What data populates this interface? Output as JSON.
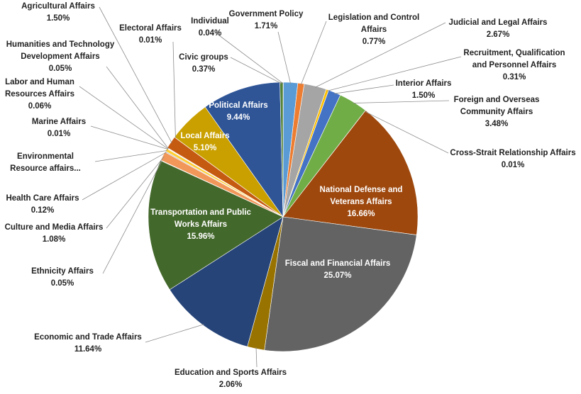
{
  "chart_data": {
    "type": "pie",
    "title": "",
    "start_angle_deg": 0,
    "direction": "clockwise",
    "slices": [
      {
        "label": "Individual",
        "value": 0.04,
        "value_label": "0.04%",
        "color": "#4472c4"
      },
      {
        "label": "Government Policy",
        "value": 1.71,
        "value_label": "1.71%",
        "color": "#5b9bd5"
      },
      {
        "label": "Legislation and Control Affairs",
        "value": 0.77,
        "value_label": "0.77%",
        "color": "#ed7d31"
      },
      {
        "label": "Judicial and Legal Affairs",
        "value": 2.67,
        "value_label": "2.67%",
        "color": "#a5a5a5"
      },
      {
        "label": "Recruitment, Qualification and Personnel Affairs",
        "value": 0.31,
        "value_label": "0.31%",
        "color": "#ffc000"
      },
      {
        "label": "Interior Affairs",
        "value": 1.5,
        "value_label": "1.50%",
        "color": "#4472c4"
      },
      {
        "label": "Foreign and Overseas Community Affairs",
        "value": 3.48,
        "value_label": "3.48%",
        "color": "#70ad47"
      },
      {
        "label": "Cross-Strait Relationship Affairs",
        "value": 0.01,
        "value_label": "0.01%",
        "color": "#264478"
      },
      {
        "label": "National Defense and Veterans Affairs",
        "value": 16.66,
        "value_label": "16.66%",
        "color": "#9e480e"
      },
      {
        "label": "Fiscal and Financial Affairs",
        "value": 25.07,
        "value_label": "25.07%",
        "color": "#636363"
      },
      {
        "label": "Education and Sports Affairs",
        "value": 2.06,
        "value_label": "2.06%",
        "color": "#997300"
      },
      {
        "label": "Economic and Trade Affairs",
        "value": 11.64,
        "value_label": "11.64%",
        "color": "#264478"
      },
      {
        "label": "Transportation and Public Works Affairs",
        "value": 15.96,
        "value_label": "15.96%",
        "color": "#43682b"
      },
      {
        "label": "Ethnicity Affairs",
        "value": 0.05,
        "value_label": "0.05%",
        "color": "#698ed0"
      },
      {
        "label": "Culture and Media Affairs",
        "value": 1.08,
        "value_label": "1.08%",
        "color": "#f1975a"
      },
      {
        "label": "Health Care Affairs",
        "value": 0.12,
        "value_label": "0.12%",
        "color": "#b7b7b7"
      },
      {
        "label": "Environmental Resource affairs...",
        "value": 0.35,
        "value_label": "",
        "color": "#ffcd33"
      },
      {
        "label": "Marine Affairs",
        "value": 0.01,
        "value_label": "0.01%",
        "color": "#4472c4"
      },
      {
        "label": "Labor and Human Resources Affairs",
        "value": 0.06,
        "value_label": "0.06%",
        "color": "#8cc168"
      },
      {
        "label": "Humanities and Technology Development Affairs",
        "value": 0.05,
        "value_label": "0.05%",
        "color": "#255e91"
      },
      {
        "label": "Agricultural Affairs",
        "value": 1.5,
        "value_label": "1.50%",
        "color": "#c55a11"
      },
      {
        "label": "Electoral Affairs",
        "value": 0.01,
        "value_label": "0.01%",
        "color": "#7c7c7c"
      },
      {
        "label": "Local Affairs",
        "value": 5.1,
        "value_label": "5.10%",
        "color": "#c9a000"
      },
      {
        "label": "Political Affairs",
        "value": 9.44,
        "value_label": "9.44%",
        "color": "#2f5597"
      },
      {
        "label": "Civic groups",
        "value": 0.37,
        "value_label": "0.37%",
        "color": "#548235"
      }
    ]
  }
}
